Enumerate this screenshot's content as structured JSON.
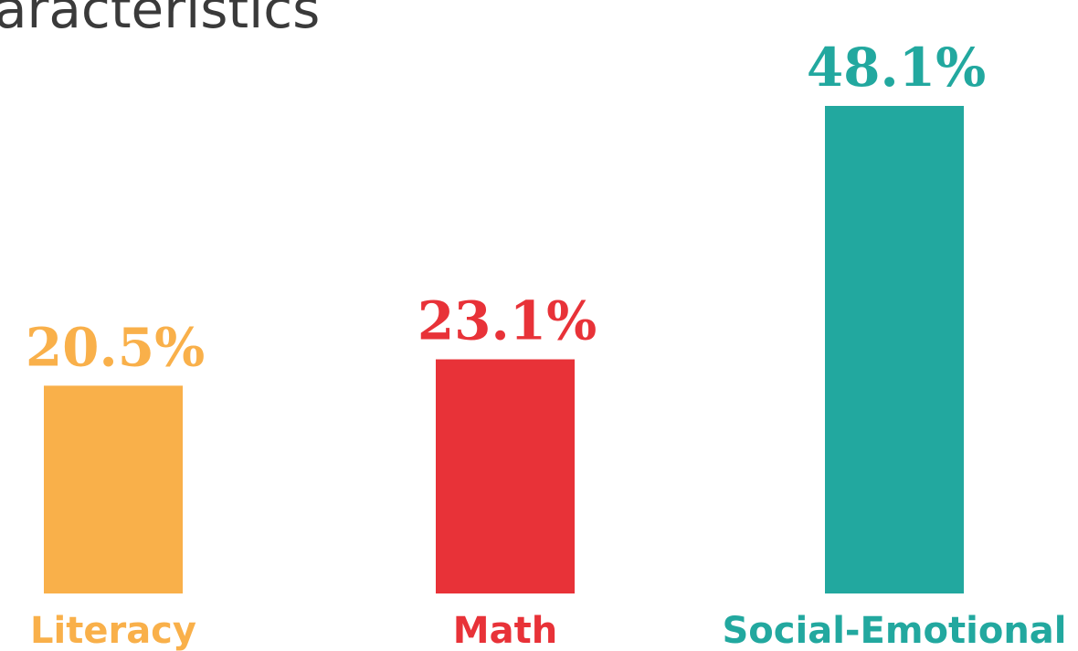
{
  "chart_data": {
    "type": "bar",
    "title": "aracteristics",
    "categories": [
      "Literacy",
      "Math",
      "Social-Emotional"
    ],
    "values": [
      20.5,
      23.1,
      48.1
    ],
    "value_labels": [
      "20.5%",
      "23.1%",
      "48.1%"
    ],
    "colors": [
      "#f9b04a",
      "#e83238",
      "#22a89f"
    ]
  }
}
